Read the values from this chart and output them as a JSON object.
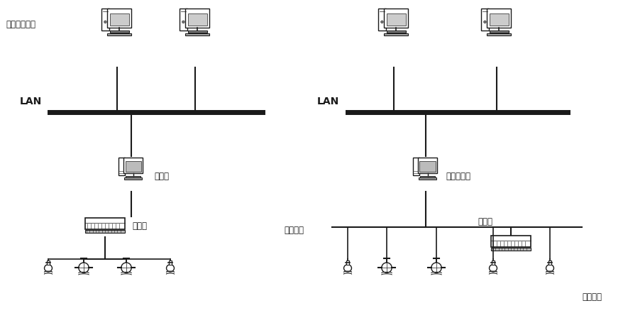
{
  "bg_color": "#ffffff",
  "line_color": "#1a1a1a",
  "label_主机或服务器": "主机或服务器",
  "label_LAN_left": "LAN",
  "label_LAN_right": "LAN",
  "label_操作站": "操作站",
  "label_监控工作站": "监控工作站",
  "label_控制站_left": "控制站",
  "label_现场总线": "现场总线",
  "label_控制站_right": "控制站",
  "label_现场设备": "现场设备",
  "font_size_label": 8.5,
  "font_size_LAN": 10,
  "font_size_title": 8.5
}
